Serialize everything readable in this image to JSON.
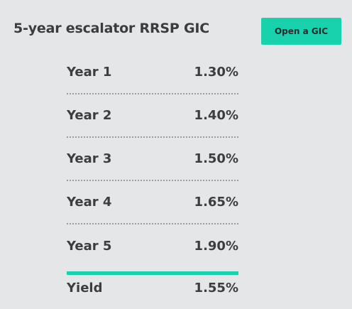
{
  "title": "5-year escalator RRSP GIC",
  "open_button": "Open a GIC",
  "rates": [
    {
      "label": "Year 1",
      "value": "1.30%"
    },
    {
      "label": "Year 2",
      "value": "1.40%"
    },
    {
      "label": "Year 3",
      "value": "1.50%"
    },
    {
      "label": "Year 4",
      "value": "1.65%"
    },
    {
      "label": "Year 5",
      "value": "1.90%"
    }
  ],
  "total": {
    "label": "Yield",
    "value": "1.55%"
  },
  "colors": {
    "accent": "#18d2ad",
    "background": "#e5e6e8",
    "text": "#3d3d3d"
  }
}
